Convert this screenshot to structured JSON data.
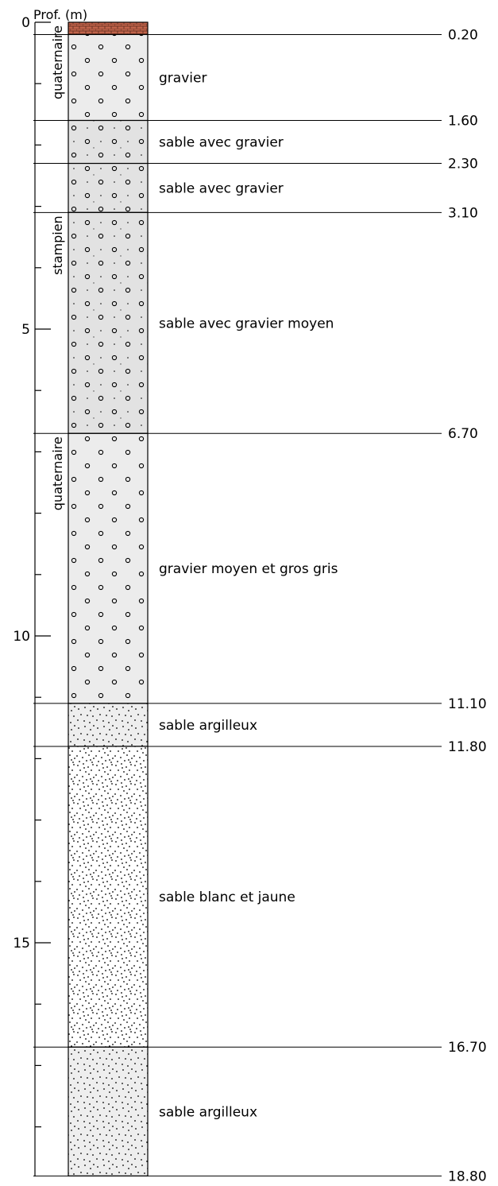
{
  "axis": {
    "title": "Prof. (m)",
    "max_depth": 18.8,
    "major_ticks": [
      0,
      5,
      10,
      15
    ],
    "minor_step": 1
  },
  "chart_data": {
    "type": "table",
    "title": "",
    "xlabel": "",
    "ylabel": "Prof. (m)",
    "ylim": [
      0,
      18.8
    ],
    "layers": [
      {
        "top": 0.0,
        "bottom": 0.2,
        "bottom_label": "0.20",
        "description": "",
        "pattern": "brick"
      },
      {
        "top": 0.2,
        "bottom": 1.6,
        "bottom_label": "1.60",
        "description": "gravier",
        "pattern": "gravel"
      },
      {
        "top": 1.6,
        "bottom": 2.3,
        "bottom_label": "2.30",
        "description": "sable avec gravier",
        "pattern": "gravel-sand"
      },
      {
        "top": 2.3,
        "bottom": 3.1,
        "bottom_label": "3.10",
        "description": "sable avec gravier",
        "pattern": "gravel-sand"
      },
      {
        "top": 3.1,
        "bottom": 6.7,
        "bottom_label": "6.70",
        "description": "sable avec gravier moyen",
        "pattern": "gravel-sand"
      },
      {
        "top": 6.7,
        "bottom": 11.1,
        "bottom_label": "11.10",
        "description": "gravier moyen et gros gris",
        "pattern": "gravel"
      },
      {
        "top": 11.1,
        "bottom": 11.8,
        "bottom_label": "11.80",
        "description": "sable argilleux",
        "pattern": "clay-sand"
      },
      {
        "top": 11.8,
        "bottom": 16.7,
        "bottom_label": "16.70",
        "description": "sable blanc et jaune",
        "pattern": "sand"
      },
      {
        "top": 16.7,
        "bottom": 18.8,
        "bottom_label": "18.80",
        "description": "sable argilleux",
        "pattern": "clay-sand"
      }
    ],
    "stratigraphy": [
      {
        "top": 0.0,
        "bottom": 1.6,
        "label": "quaternaire"
      },
      {
        "top": 3.1,
        "bottom": 4.2,
        "label": "stampien"
      },
      {
        "top": 6.7,
        "bottom": 8.2,
        "label": "quaternaire"
      }
    ]
  },
  "colors": {
    "brick": "#c0634a",
    "gravel_fill": "#ececec",
    "gravel_sand_fill": "#e2e2e2",
    "clay_sand_fill": "#eeeeee",
    "sand_fill": "#ffffff",
    "line": "#000000"
  }
}
